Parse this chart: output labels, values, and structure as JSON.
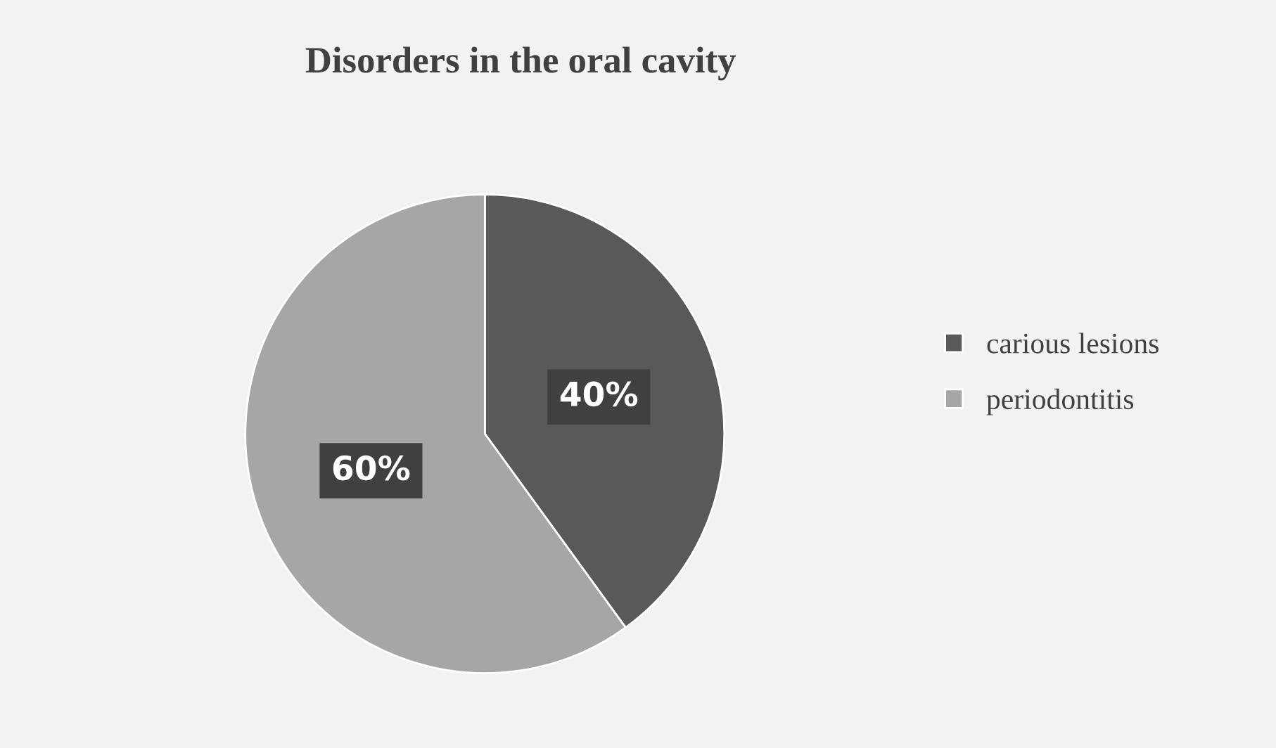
{
  "chart_data": {
    "type": "pie",
    "title": "Disorders in the oral cavity",
    "categories": [
      "carious lesions",
      "periodontitis"
    ],
    "values": [
      40,
      60
    ],
    "colors": [
      "#595959",
      "#a6a6a6"
    ],
    "value_labels": [
      "40%",
      "60%"
    ],
    "legend": "right"
  }
}
